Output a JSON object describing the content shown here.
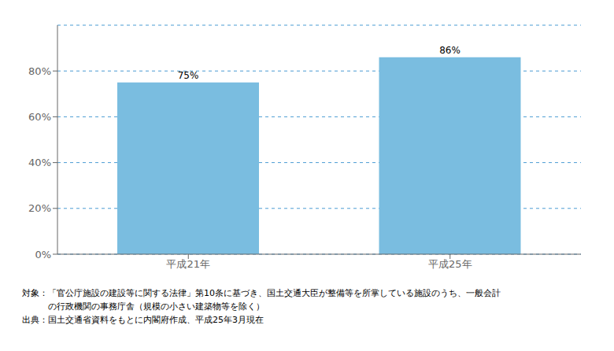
{
  "chart_data": {
    "type": "bar",
    "categories": [
      "平成21年",
      "平成25年"
    ],
    "values": [
      0.75,
      0.86
    ],
    "value_labels": [
      "75%",
      "86%"
    ],
    "data_labels": true,
    "color": "#7ABDE0",
    "ylim": [
      0,
      1.0
    ],
    "yticks": [
      {
        "value": 0,
        "label": "0%"
      },
      {
        "value": 0.2,
        "label": "20%"
      },
      {
        "value": 0.4,
        "label": "40%"
      },
      {
        "value": 0.6,
        "label": "60%"
      },
      {
        "value": 0.8,
        "label": "80%"
      }
    ],
    "grid": true,
    "annotations": [
      "対象：「官公庁施設の建設等に関する法律」第10条に基づき、国土交通大臣が整備等を所掌している施設のうち、一般会計",
      "　　　の行政機関の事務庁舎（規模の小さい建築物等を除く）",
      "出典：国土交通省資料をもとに内閣府作成、平成25年3月現在"
    ]
  }
}
